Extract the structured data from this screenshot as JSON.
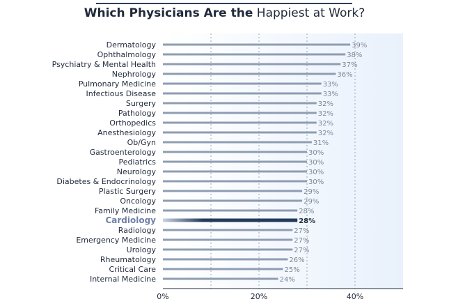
{
  "chart_data": {
    "type": "bar",
    "orientation": "horizontal",
    "title_strong": "Which Physicians Are the",
    "title_rest": "Happiest at Work?",
    "categories": [
      "Dermatology",
      "Ophthalmology",
      "Psychiatry & Mental Health",
      "Nephrology",
      "Pulmonary Medicine",
      "Infectious Disease",
      "Surgery",
      "Pathology",
      "Orthopedics",
      "Anesthesiology",
      "Ob/Gyn",
      "Gastroenterology",
      "Pediatrics",
      "Neurology",
      "Diabetes & Endocrinology",
      "Plastic Surgery",
      "Oncology",
      "Family Medicine",
      "Cardiology",
      "Radiology",
      "Emergency Medicine",
      "Urology",
      "Rheumatology",
      "Critical Care",
      "Internal Medicine"
    ],
    "values": [
      39,
      38,
      37,
      36,
      33,
      33,
      32,
      32,
      32,
      32,
      31,
      30,
      30,
      30,
      30,
      29,
      29,
      28,
      28,
      27,
      27,
      27,
      26,
      25,
      24
    ],
    "value_labels": [
      "39%",
      "38%",
      "37%",
      "36%",
      "33%",
      "33%",
      "32%",
      "32%",
      "32%",
      "32%",
      "31%",
      "30%",
      "30%",
      "30%",
      "30%",
      "29%",
      "29%",
      "28%",
      "28%",
      "27%",
      "27%",
      "27%",
      "26%",
      "25%",
      "24%"
    ],
    "highlight": "Cardiology",
    "xlim": [
      0,
      50
    ],
    "xticks": [
      0,
      20,
      40
    ],
    "xtick_labels": [
      "0%",
      "20%",
      "40%"
    ],
    "gridlines_at": [
      10,
      20,
      30,
      40
    ],
    "grid": true,
    "colors": {
      "bar": "#8e9db2",
      "highlight": "#233a5c",
      "plot_bg": "#eef4fd",
      "grid": "#9aa6b8"
    }
  }
}
